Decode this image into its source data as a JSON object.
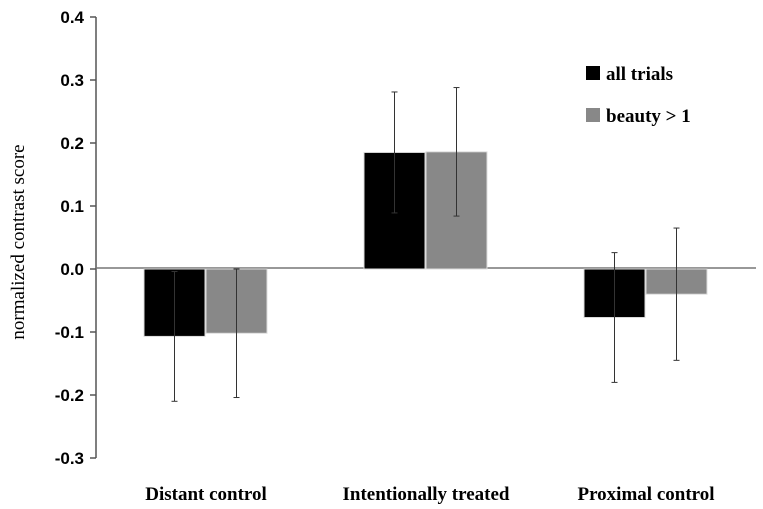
{
  "chart_data": {
    "type": "bar",
    "title": "",
    "xlabel": "",
    "ylabel": "normalized contrast score",
    "categories": [
      "Distant control",
      "Intentionally treated",
      "Proximal control"
    ],
    "series": [
      {
        "name": "all trials",
        "color": "#000000",
        "values": [
          -0.107,
          0.185,
          -0.077
        ],
        "error": [
          0.103,
          0.096,
          0.103
        ]
      },
      {
        "name": "beauty > 1",
        "color": "#888888",
        "values": [
          -0.102,
          0.186,
          -0.04
        ],
        "error": [
          0.102,
          0.102,
          0.105
        ]
      }
    ],
    "ylim": [
      -0.3,
      0.4
    ],
    "yticks": [
      "-0.3",
      "-0.2",
      "-0.1",
      "0.0",
      "0.1",
      "0.2",
      "0.3",
      "0.4"
    ],
    "legend_position": "top-right",
    "grid": false
  }
}
